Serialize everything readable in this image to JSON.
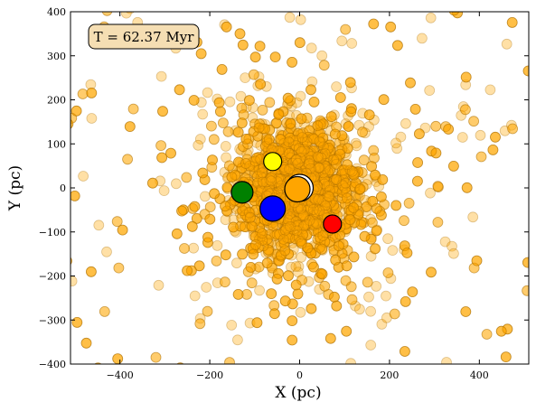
{
  "chart_data": {
    "type": "scatter",
    "title": "",
    "xlabel": "X (pc)",
    "ylabel": "Y (pc)",
    "xlim": [
      -510,
      510
    ],
    "ylim": [
      -400,
      400
    ],
    "xticks": [
      -400,
      -200,
      0,
      200,
      400
    ],
    "yticks": [
      -400,
      -300,
      -200,
      -100,
      0,
      100,
      200,
      300,
      400
    ],
    "grid": false,
    "annotation": "T = 62.37 Myr",
    "background_stars": {
      "color": "#ffa500",
      "opacity": 0.35,
      "distribution": "dense cluster concentrated near (0, 0), thinning out toward the edges of the field",
      "count_estimate": 3000,
      "core_spread_pc": 90,
      "halo_spread_pc": 260
    },
    "highlighted_stars": [
      {
        "x": 0,
        "y": 0,
        "color": "#ffffff",
        "size": "largest"
      },
      {
        "x": -5,
        "y": -3,
        "color": "#ffa500",
        "size": "large"
      },
      {
        "x": -60,
        "y": 60,
        "color": "#ffff00",
        "size": "small"
      },
      {
        "x": -128,
        "y": -10,
        "color": "#008000",
        "size": "medium"
      },
      {
        "x": -60,
        "y": -47,
        "color": "#0000ff",
        "size": "large"
      },
      {
        "x": 73,
        "y": -82,
        "color": "#ff0000",
        "size": "small"
      }
    ]
  }
}
